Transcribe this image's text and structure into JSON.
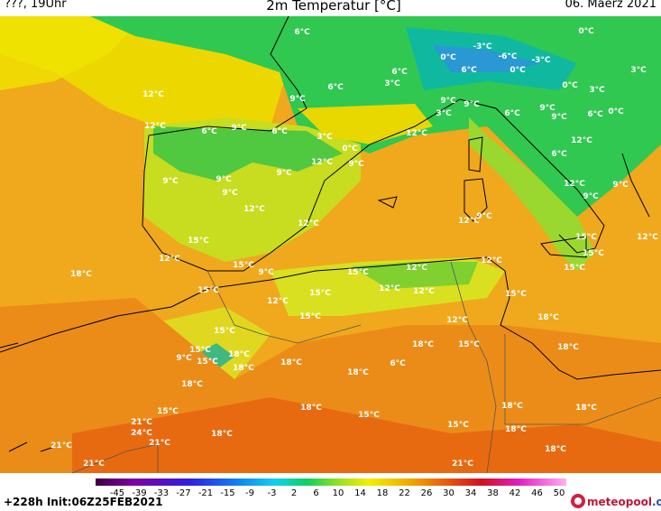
{
  "header": {
    "left": "???, 19Uhr",
    "title": "2m Temperatur [°C]",
    "date": "06. Maerz 2021"
  },
  "footer": {
    "run": "+228h Init:06Z25FEB2021",
    "brand": "meteopool",
    "brand_tld": ".org"
  },
  "colorbar": {
    "ticks": [
      -45,
      -39,
      -33,
      -27,
      -21,
      -15,
      -9,
      -3,
      2,
      6,
      10,
      14,
      18,
      22,
      26,
      30,
      34,
      38,
      42,
      46,
      50
    ]
  },
  "map": {
    "labels": [
      "6°C",
      "0°C",
      "-3°C",
      "0°C",
      "-6°C",
      "-3°C",
      "0°C",
      "6°C",
      "3°C",
      "6°C",
      "3°C",
      "6°C",
      "12°C",
      "9°C",
      "0°C",
      "3°C",
      "9°C",
      "9°C",
      "3°C",
      "6°C",
      "9°C",
      "9°C",
      "6°C",
      "0°C",
      "12°C",
      "6°C",
      "9°C",
      "6°C",
      "3°C",
      "12°C",
      "0°C",
      "12°C",
      "9°C",
      "12°C",
      "6°C",
      "9°C",
      "9°C",
      "9°C",
      "9°C",
      "12°C",
      "9°C",
      "9°C",
      "12°C",
      "12°C",
      "12°C",
      "9°C",
      "15°C",
      "12°C",
      "15°C",
      "15°C",
      "12°C",
      "15°C",
      "9°C",
      "12°C",
      "12°C",
      "15°C",
      "18°C",
      "15°C",
      "15°C",
      "12°C",
      "12°C",
      "15°C",
      "12°C",
      "15°C",
      "15°C",
      "18°C",
      "12°C",
      "15°C",
      "15°C",
      "18°C",
      "18°C",
      "15°C",
      "18°C",
      "9°C",
      "15°C",
      "18°C",
      "18°C",
      "18°C",
      "6°C",
      "18°C",
      "18°C",
      "15°C",
      "15°C",
      "18°C",
      "18°C",
      "15°C",
      "18°C",
      "21°C",
      "24°C",
      "21°C",
      "18°C",
      "21°C",
      "18°C",
      "21°C",
      "21°C"
    ]
  }
}
